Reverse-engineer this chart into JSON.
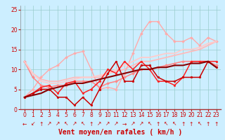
{
  "bg_color": "#cceeff",
  "grid_color": "#99cccc",
  "xlabel": "Vent moyen/en rafales ( km/h )",
  "xlabel_color": "#cc0000",
  "xlabel_fontsize": 7,
  "yticks": [
    0,
    5,
    10,
    15,
    20,
    25
  ],
  "xticks": [
    0,
    1,
    2,
    3,
    4,
    5,
    6,
    7,
    8,
    9,
    10,
    11,
    12,
    13,
    14,
    15,
    16,
    17,
    18,
    19,
    20,
    21,
    22,
    23
  ],
  "tick_color": "#cc0000",
  "tick_fontsize": 5.5,
  "lines": [
    {
      "y": [
        12,
        9,
        7.5,
        7,
        7,
        7.5,
        8,
        8,
        8,
        8,
        9,
        9.5,
        10,
        11,
        12,
        12,
        12.5,
        13,
        13.5,
        14,
        14.5,
        15,
        16,
        17
      ],
      "color": "#ffbbbb",
      "lw": 1.3,
      "marker": null,
      "markersize": 0,
      "alpha": 1.0
    },
    {
      "y": [
        3,
        5,
        8,
        10,
        11,
        13,
        14,
        14.5,
        10,
        5,
        5.5,
        5,
        9,
        14,
        19,
        22,
        22,
        19,
        17,
        17,
        18,
        16,
        18,
        17
      ],
      "color": "#ffaaaa",
      "lw": 1.0,
      "marker": "D",
      "markersize": 2.0,
      "alpha": 1.0
    },
    {
      "y": [
        12,
        8,
        6,
        5.5,
        6,
        6,
        7,
        7,
        7,
        5.5,
        6.5,
        7,
        8,
        9,
        10,
        10,
        10.5,
        11,
        11.5,
        12,
        12,
        12,
        12,
        11
      ],
      "color": "#ff8888",
      "lw": 1.2,
      "marker": "D",
      "markersize": 2.0,
      "alpha": 1.0
    },
    {
      "y": [
        12,
        9,
        7,
        6.5,
        6.5,
        7,
        7.5,
        8,
        8,
        8.5,
        9,
        10,
        11,
        12,
        13,
        13,
        13.5,
        14,
        14,
        15,
        15,
        15.5,
        16.5,
        17
      ],
      "color": "#ffcccc",
      "lw": 1.3,
      "marker": null,
      "markersize": 0,
      "alpha": 1.0
    },
    {
      "y": [
        3,
        4,
        5.5,
        6,
        4,
        6.5,
        7,
        4,
        5,
        7,
        10,
        9,
        12,
        10,
        12,
        10,
        7,
        7,
        6,
        8,
        12,
        12,
        12,
        12
      ],
      "color": "#ff2222",
      "lw": 1.1,
      "marker": "o",
      "markersize": 2.0,
      "alpha": 1.0
    },
    {
      "y": [
        3,
        4,
        5,
        5,
        3,
        3,
        1,
        3,
        1,
        5,
        9,
        12,
        7,
        7,
        11,
        11,
        8,
        7,
        7,
        8,
        8,
        8,
        12,
        10.5
      ],
      "color": "#cc0000",
      "lw": 1.1,
      "marker": "o",
      "markersize": 2.0,
      "alpha": 1.0
    },
    {
      "y": [
        3,
        3.5,
        4,
        5,
        5.5,
        6,
        6.5,
        6.5,
        7,
        7.5,
        8,
        8.5,
        9,
        9.5,
        10,
        10,
        10.5,
        10.5,
        11,
        11,
        11.5,
        11.5,
        12,
        10.5
      ],
      "color": "#880000",
      "lw": 1.5,
      "marker": null,
      "markersize": 0,
      "alpha": 1.0
    }
  ],
  "arrows": [
    "←",
    "↙",
    "↑",
    "↗",
    "↗",
    "↖",
    "↗",
    "↖",
    "↑",
    "↗",
    "↗",
    "↗",
    "→",
    "↗",
    "↗",
    "↖",
    "↑",
    "↖",
    "↖",
    "↑",
    "↑",
    "↖",
    "↑",
    "↑"
  ],
  "ylim": [
    0,
    26
  ],
  "xlim": [
    -0.5,
    23.5
  ]
}
